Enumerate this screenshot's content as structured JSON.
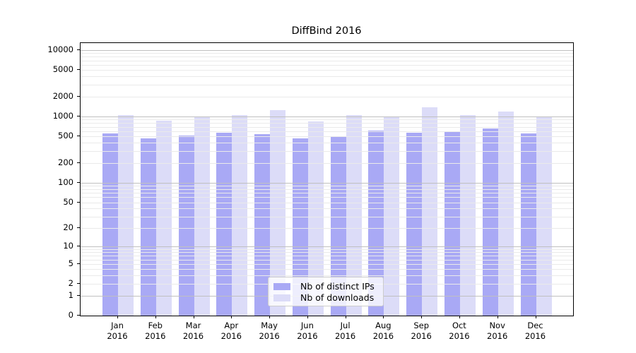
{
  "title": "DiffBind 2016",
  "chart_data": {
    "type": "bar",
    "title": "DiffBind 2016",
    "categories": [
      "Jan 2016",
      "Feb 2016",
      "Mar 2016",
      "Apr 2016",
      "May 2016",
      "Jun 2016",
      "Jul 2016",
      "Aug 2016",
      "Sep 2016",
      "Oct 2016",
      "Nov 2016",
      "Dec 2016"
    ],
    "series": [
      {
        "name": "Nb of distinct IPs",
        "color": "#a9a9f5",
        "values": [
          555,
          470,
          520,
          575,
          545,
          470,
          505,
          610,
          575,
          580,
          665,
          550
        ]
      },
      {
        "name": "Nb of downloads",
        "color": "#dcdcf8",
        "values": [
          1050,
          865,
          1010,
          1050,
          1240,
          845,
          1060,
          975,
          1370,
          1050,
          1180,
          1000
        ]
      }
    ],
    "xlabel": "",
    "ylabel": "",
    "y_scale": "log10(value+1)",
    "y_max_log_units": 4.106,
    "y_ticks": [
      10000,
      5000,
      2000,
      1000,
      500,
      200,
      100,
      50,
      20,
      10,
      5,
      2,
      1,
      0
    ],
    "grid": true,
    "legend_position": "lower center",
    "style": {
      "grid_major_color": "#c0c0c0",
      "grid_minor_color": "#eaeaea",
      "axis_color": "#000000",
      "legend_border_color": "#cccccc",
      "background": "#ffffff"
    }
  }
}
